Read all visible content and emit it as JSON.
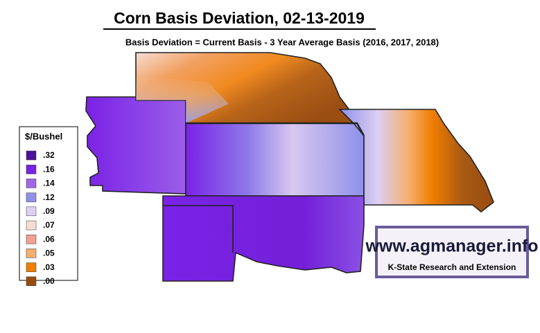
{
  "title": "Corn Basis Deviation, 02-13-2019",
  "subtitle": "Basis Deviation = Current Basis - 3 Year Average Basis (2016, 2017, 2018)",
  "legend": {
    "title": "$/Bushel",
    "items": [
      {
        "label": ".32",
        "color": "#4a1496"
      },
      {
        "label": ".16",
        "color": "#7a22e6"
      },
      {
        "label": ".14",
        "color": "#a066ea"
      },
      {
        "label": ".12",
        "color": "#8e90ea"
      },
      {
        "label": ".09",
        "color": "#dccff2"
      },
      {
        "label": ".07",
        "color": "#f6ddd2"
      },
      {
        "label": ".06",
        "color": "#f2a092"
      },
      {
        "label": ".05",
        "color": "#f6ae6e"
      },
      {
        "label": ".03",
        "color": "#f07e00"
      },
      {
        "label": ".00",
        "color": "#984c10"
      }
    ]
  },
  "logo": {
    "url": "www.agmanager.info",
    "caption": "K-State Research and Extension"
  }
}
